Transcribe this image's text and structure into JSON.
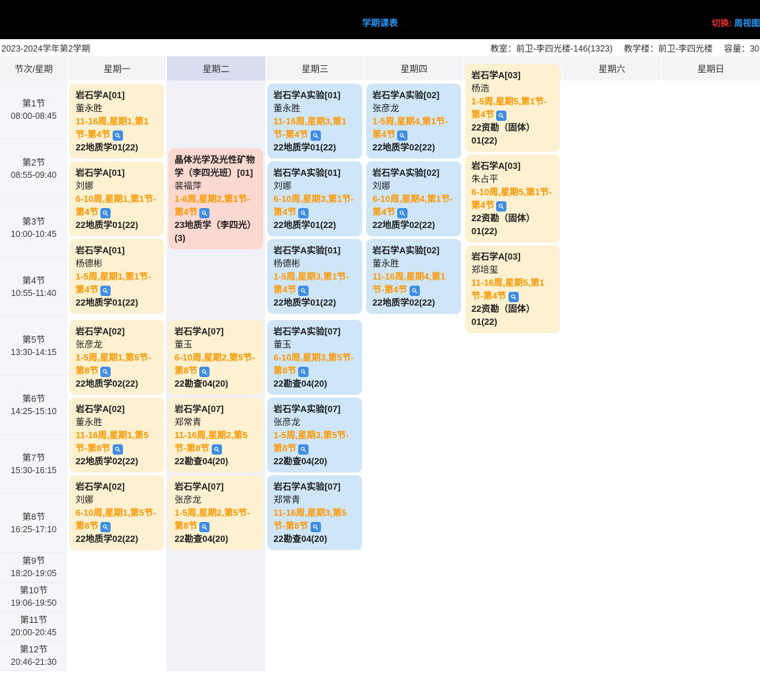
{
  "top_bar": {
    "title": "学期课表",
    "switch_label": "切换:",
    "switch_value": "周视图"
  },
  "info_bar": {
    "semester": "2023-2024学年第2学期",
    "room_label": "教室：",
    "room_value": "前卫-李四光楼-146(1323)",
    "building_label": "教学楼：",
    "building_value": "前卫-李四光楼",
    "capacity_label": "容量：",
    "capacity_value": "30"
  },
  "table": {
    "corner_label": "节次/星期",
    "highlighted_day": "星期二",
    "day_headers": [
      "星期一",
      "星期二",
      "星期三",
      "星期四",
      "星期五",
      "星期六",
      "星期日"
    ],
    "periods": [
      {
        "name": "第1节",
        "time": "08:00-08:45",
        "small": false
      },
      {
        "name": "第2节",
        "time": "08:55-09:40",
        "small": false
      },
      {
        "name": "第3节",
        "time": "10:00-10:45",
        "small": false
      },
      {
        "name": "第4节",
        "time": "10:55-11:40",
        "small": false
      },
      {
        "name": "第5节",
        "time": "13:30-14:15",
        "small": false
      },
      {
        "name": "第6节",
        "time": "14:25-15:10",
        "small": false
      },
      {
        "name": "第7节",
        "time": "15:30-16:15",
        "small": false
      },
      {
        "name": "第8节",
        "time": "16:25-17:10",
        "small": false
      },
      {
        "name": "第9节",
        "time": "18:20-19:05",
        "small": true
      },
      {
        "name": "第10节",
        "time": "19:06-19:50",
        "small": true
      },
      {
        "name": "第11节",
        "time": "20:00-20:45",
        "small": true
      },
      {
        "name": "第12节",
        "time": "20:46-21:30",
        "small": true
      }
    ]
  },
  "colors": {
    "theory_card": "#fdf1d2",
    "experiment_card": "#cfe6f8",
    "special_card": "#fbd9d0",
    "weeks_text": "#ff9800",
    "magnifier_icon": "#3e8ee6",
    "highlight_header": "#d9ddf0",
    "highlight_column": "#f1f2f8",
    "title_blue": "#2196f3",
    "switch_red": "#ee2b2b"
  },
  "columns": [
    {
      "day": "星期一",
      "blocks": [
        [
          {
            "color": "yellow",
            "title": "岩石学A[01]",
            "teacher": "董永胜",
            "weeks": "11-16周,星期1,第1节-第4节",
            "class": "22地质学01(22)"
          },
          {
            "color": "yellow",
            "title": "岩石学A[01]",
            "teacher": "刘娜",
            "weeks": "6-10周,星期1,第1节-第4节",
            "class": "22地质学01(22)"
          },
          {
            "color": "yellow",
            "title": "岩石学A[01]",
            "teacher": "杨德彬",
            "weeks": "1-5周,星期1,第1节-第4节",
            "class": "22地质学01(22)"
          }
        ],
        [
          {
            "color": "yellow",
            "title": "岩石学A[02]",
            "teacher": "张彦龙",
            "weeks": "1-5周,星期1,第5节-第8节",
            "class": "22地质学02(22)"
          },
          {
            "color": "yellow",
            "title": "岩石学A[02]",
            "teacher": "董永胜",
            "weeks": "11-16周,星期1,第5节-第8节",
            "class": "22地质学02(22)"
          },
          {
            "color": "yellow",
            "title": "岩石学A[02]",
            "teacher": "刘娜",
            "weeks": "6-10周,星期1,第5节-第8节",
            "class": "22地质学02(22)"
          }
        ]
      ]
    },
    {
      "day": "星期二",
      "blocks": [
        [
          {
            "color": "pink",
            "title": "晶体光学及光性矿物学（李四光班）[01]",
            "teacher": "裴福萍",
            "weeks": "1-6周,星期2,第1节-第4节",
            "class": "23地质学（李四光）(3)"
          }
        ],
        [
          {
            "color": "yellow",
            "title": "岩石学A[07]",
            "teacher": "董玉",
            "weeks": "6-10周,星期2,第5节-第8节",
            "class": "22勘查04(20)"
          },
          {
            "color": "yellow",
            "title": "岩石学A[07]",
            "teacher": "郑常青",
            "weeks": "11-16周,星期2,第5节-第8节",
            "class": "22勘查04(20)"
          },
          {
            "color": "yellow",
            "title": "岩石学A[07]",
            "teacher": "张彦龙",
            "weeks": "1-5周,星期2,第5节-第8节",
            "class": "22勘查04(20)"
          }
        ]
      ]
    },
    {
      "day": "星期三",
      "blocks": [
        [
          {
            "color": "blue",
            "title": "岩石学A实验[01]",
            "teacher": "董永胜",
            "weeks": "11-16周,星期3,第1节-第4节",
            "class": "22地质学01(22)"
          },
          {
            "color": "blue",
            "title": "岩石学A实验[01]",
            "teacher": "刘娜",
            "weeks": "6-10周,星期3,第1节-第4节",
            "class": "22地质学01(22)"
          },
          {
            "color": "blue",
            "title": "岩石学A实验[01]",
            "teacher": "杨德彬",
            "weeks": "1-5周,星期3,第1节-第4节",
            "class": "22地质学01(22)"
          }
        ],
        [
          {
            "color": "blue",
            "title": "岩石学A实验[07]",
            "teacher": "董玉",
            "weeks": "6-10周,星期3,第5节-第8节",
            "class": "22勘查04(20)"
          },
          {
            "color": "blue",
            "title": "岩石学A实验[07]",
            "teacher": "张彦龙",
            "weeks": "1-5周,星期3,第5节-第8节",
            "class": "22勘查04(20)"
          },
          {
            "color": "blue",
            "title": "岩石学A实验[07]",
            "teacher": "郑常青",
            "weeks": "11-16周,星期3,第5节-第8节",
            "class": "22勘查04(20)"
          }
        ]
      ]
    },
    {
      "day": "星期四",
      "blocks": [
        [
          {
            "color": "blue",
            "title": "岩石学A实验[02]",
            "teacher": "张彦龙",
            "weeks": "1-5周,星期4,第1节-第4节",
            "class": "22地质学02(22)"
          },
          {
            "color": "blue",
            "title": "岩石学A实验[02]",
            "teacher": "刘娜",
            "weeks": "6-10周,星期4,第1节-第4节",
            "class": "22地质学02(22)"
          },
          {
            "color": "blue",
            "title": "岩石学A实验[02]",
            "teacher": "董永胜",
            "weeks": "11-16周,星期4,第1节-第4节",
            "class": "22地质学02(22)"
          }
        ],
        []
      ]
    },
    {
      "day": "星期五",
      "blocks": [
        [
          {
            "color": "yellow",
            "title": "岩石学A[03]",
            "teacher": "杨浩",
            "weeks": "1-5周,星期5,第1节-第4节",
            "class": "22资勘（固体）01(22)"
          },
          {
            "color": "yellow",
            "title": "岩石学A[03]",
            "teacher": "朱占平",
            "weeks": "6-10周,星期5,第1节-第4节",
            "class": "22资勘（固体）01(22)"
          },
          {
            "color": "yellow",
            "title": "岩石学A[03]",
            "teacher": "郑培玺",
            "weeks": "11-16周,星期5,第1节-第4节",
            "class": "22资勘（固体）01(22)"
          }
        ],
        []
      ]
    },
    {
      "day": "星期六",
      "blocks": [
        [],
        []
      ]
    },
    {
      "day": "星期日",
      "blocks": [
        [],
        []
      ]
    }
  ]
}
